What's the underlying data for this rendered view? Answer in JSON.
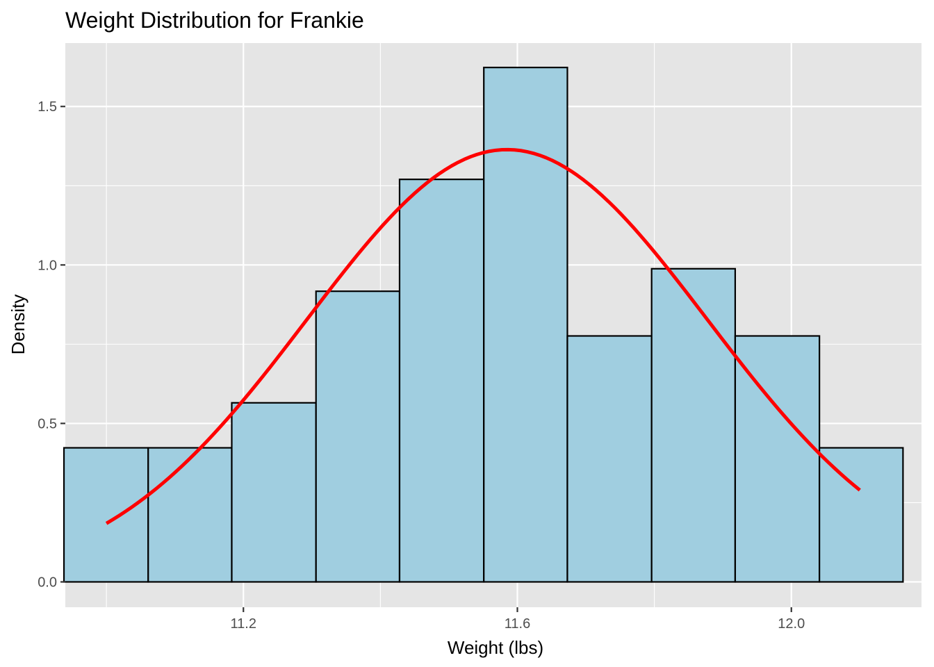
{
  "chart_data": {
    "type": "bar",
    "title": "Weight Distribution for Frankie",
    "xlabel": "Weight (lbs)",
    "ylabel": "Density",
    "xlim": [
      10.94,
      12.19
    ],
    "ylim": [
      -0.08,
      1.7
    ],
    "x_ticks": [
      11.2,
      11.6,
      12.0
    ],
    "x_tick_labels": [
      "11.2",
      "11.6",
      "12.0"
    ],
    "y_ticks": [
      0.0,
      0.5,
      1.0,
      1.5
    ],
    "y_tick_labels": [
      "0.0",
      "0.5",
      "1.0",
      "1.5"
    ],
    "grid": true,
    "legend": "none",
    "bins": [
      {
        "x0": 10.938,
        "x1": 11.061,
        "density": 0.423
      },
      {
        "x0": 11.061,
        "x1": 11.183,
        "density": 0.423
      },
      {
        "x0": 11.183,
        "x1": 11.306,
        "density": 0.565
      },
      {
        "x0": 11.306,
        "x1": 11.428,
        "density": 0.917
      },
      {
        "x0": 11.428,
        "x1": 11.551,
        "density": 1.27
      },
      {
        "x0": 11.551,
        "x1": 11.673,
        "density": 1.623
      },
      {
        "x0": 11.673,
        "x1": 11.796,
        "density": 0.776
      },
      {
        "x0": 11.796,
        "x1": 11.918,
        "density": 0.988
      },
      {
        "x0": 11.918,
        "x1": 12.041,
        "density": 0.776
      },
      {
        "x0": 12.041,
        "x1": 12.163,
        "density": 0.423
      }
    ],
    "density_curve": {
      "mean": 11.585,
      "sd": 0.2925,
      "x_range": [
        11.0,
        12.1
      ]
    },
    "colors": {
      "bar_fill": "#a0cee0",
      "bar_stroke": "#000000",
      "curve": "#ff0000",
      "panel_background": "#e5e5e5",
      "grid": "#ffffff"
    }
  }
}
